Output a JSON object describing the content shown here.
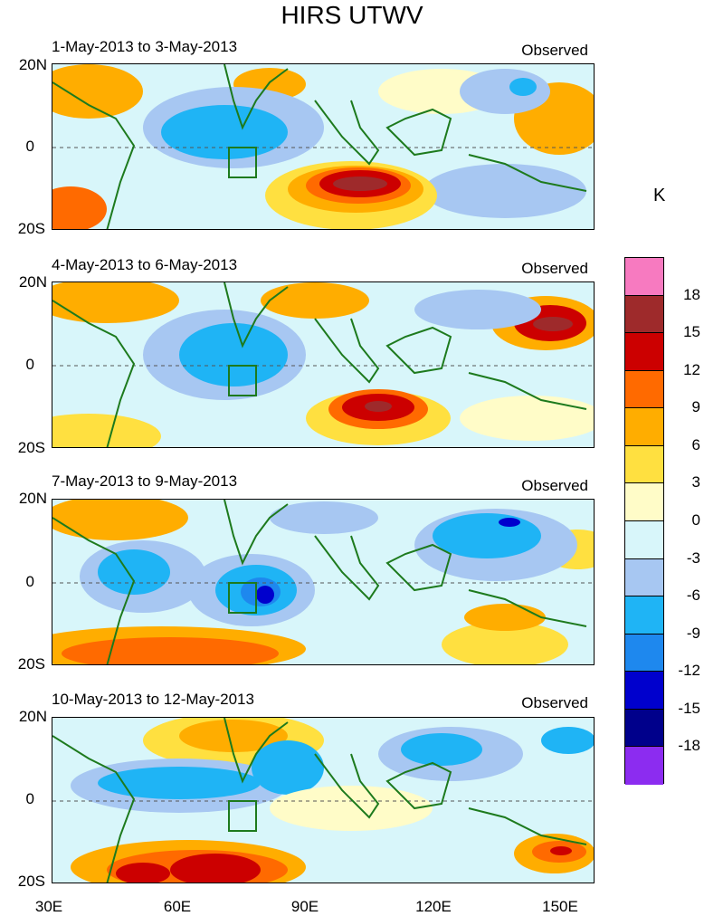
{
  "title": "HIRS UTWV",
  "panels": [
    {
      "date": "1-May-2013 to 3-May-2013",
      "tag": "Observed"
    },
    {
      "date": "4-May-2013 to 6-May-2013",
      "tag": "Observed"
    },
    {
      "date": "7-May-2013 to 9-May-2013",
      "tag": "Observed"
    },
    {
      "date": "10-May-2013 to 12-May-2013",
      "tag": "Observed"
    }
  ],
  "lat_labels": [
    "20N",
    "0",
    "20S"
  ],
  "lon_labels": [
    "30E",
    "60E",
    "90E",
    "120E",
    "150E"
  ],
  "unit": "K",
  "colorbar": {
    "labels": [
      "18",
      "15",
      "12",
      "9",
      "6",
      "3",
      "0",
      "-3",
      "-6",
      "-9",
      "-12",
      "-15",
      "-18"
    ],
    "colors": [
      "#f77ac0",
      "#9e2a2b",
      "#cc0000",
      "#ff6a00",
      "#ffad00",
      "#ffe040",
      "#fffcc8",
      "#d8f6fa",
      "#a7c7f2",
      "#1fb4f5",
      "#1e88ee",
      "#0000cd",
      "#00008b",
      "#8c2cf0"
    ]
  },
  "colors": {
    "coast": "#1d7a1d",
    "box": "#1d7a1d"
  }
}
